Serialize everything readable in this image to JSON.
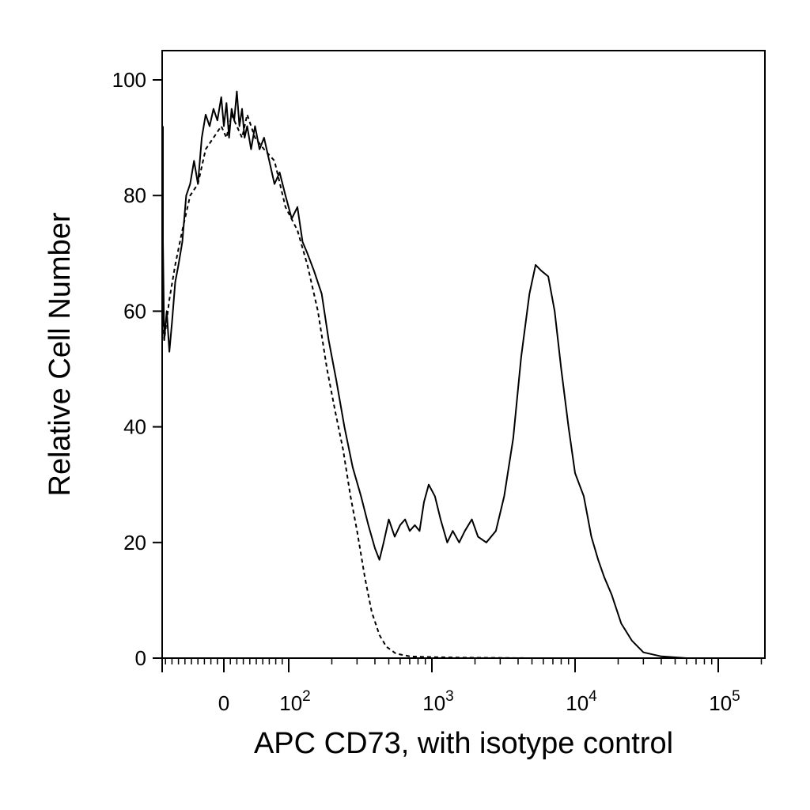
{
  "chart_data": {
    "type": "line",
    "xlabel": "APC CD73, with isotype control",
    "ylabel": "Relative Cell Number",
    "x_scale": "biexponential (linear near 0, log above 10^2)",
    "xlim": [
      -100,
      250000
    ],
    "ylim": [
      0,
      105
    ],
    "grid": false,
    "x_tick_labels": [
      {
        "value": 0,
        "base": "0",
        "exp": ""
      },
      {
        "value": 100,
        "base": "10",
        "exp": "2"
      },
      {
        "value": 1000,
        "base": "10",
        "exp": "3"
      },
      {
        "value": 10000,
        "base": "10",
        "exp": "4"
      },
      {
        "value": 100000,
        "base": "10",
        "exp": "5"
      }
    ],
    "y_ticks": [
      0,
      20,
      40,
      60,
      80,
      100
    ],
    "series": [
      {
        "style": "solid",
        "points": [
          [
            -100,
            92
          ],
          [
            -98,
            58
          ],
          [
            -95,
            72
          ],
          [
            -92,
            55
          ],
          [
            -88,
            60
          ],
          [
            -84,
            53
          ],
          [
            -80,
            58
          ],
          [
            -75,
            65
          ],
          [
            -70,
            68
          ],
          [
            -64,
            72
          ],
          [
            -58,
            80
          ],
          [
            -52,
            82
          ],
          [
            -46,
            86
          ],
          [
            -40,
            82
          ],
          [
            -34,
            90
          ],
          [
            -28,
            94
          ],
          [
            -22,
            92
          ],
          [
            -16,
            95
          ],
          [
            -10,
            93
          ],
          [
            -4,
            97
          ],
          [
            0,
            92
          ],
          [
            4,
            96
          ],
          [
            8,
            90
          ],
          [
            12,
            95
          ],
          [
            16,
            93
          ],
          [
            20,
            98
          ],
          [
            24,
            92
          ],
          [
            28,
            95
          ],
          [
            32,
            90
          ],
          [
            36,
            92
          ],
          [
            42,
            88
          ],
          [
            48,
            92
          ],
          [
            55,
            88
          ],
          [
            62,
            90
          ],
          [
            70,
            86
          ],
          [
            78,
            82
          ],
          [
            86,
            84
          ],
          [
            95,
            80
          ],
          [
            105,
            76
          ],
          [
            115,
            78
          ],
          [
            125,
            72
          ],
          [
            135,
            70
          ],
          [
            150,
            67
          ],
          [
            170,
            63
          ],
          [
            190,
            55
          ],
          [
            215,
            48
          ],
          [
            245,
            40
          ],
          [
            280,
            33
          ],
          [
            320,
            28
          ],
          [
            360,
            23
          ],
          [
            400,
            19
          ],
          [
            430,
            17
          ],
          [
            460,
            20
          ],
          [
            500,
            24
          ],
          [
            550,
            21
          ],
          [
            600,
            23
          ],
          [
            650,
            24
          ],
          [
            700,
            22
          ],
          [
            760,
            23
          ],
          [
            820,
            22
          ],
          [
            880,
            27
          ],
          [
            950,
            30
          ],
          [
            1050,
            28
          ],
          [
            1150,
            24
          ],
          [
            1280,
            20
          ],
          [
            1400,
            22
          ],
          [
            1550,
            20
          ],
          [
            1700,
            22
          ],
          [
            1900,
            24
          ],
          [
            2100,
            21
          ],
          [
            2400,
            20
          ],
          [
            2800,
            22
          ],
          [
            3200,
            28
          ],
          [
            3700,
            38
          ],
          [
            4200,
            52
          ],
          [
            4800,
            63
          ],
          [
            5300,
            68
          ],
          [
            5800,
            67
          ],
          [
            6500,
            66
          ],
          [
            7200,
            60
          ],
          [
            8000,
            50
          ],
          [
            9000,
            40
          ],
          [
            10000,
            32
          ],
          [
            11500,
            28
          ],
          [
            13000,
            21
          ],
          [
            14500,
            17
          ],
          [
            16000,
            14
          ],
          [
            18000,
            11
          ],
          [
            21000,
            6
          ],
          [
            25000,
            3
          ],
          [
            30000,
            1
          ],
          [
            40000,
            0.3
          ],
          [
            60000,
            0
          ],
          [
            250000,
            0
          ]
        ]
      },
      {
        "style": "dashed",
        "points": [
          [
            -100,
            58
          ],
          [
            -92,
            55
          ],
          [
            -84,
            62
          ],
          [
            -75,
            68
          ],
          [
            -64,
            74
          ],
          [
            -52,
            80
          ],
          [
            -40,
            82
          ],
          [
            -28,
            88
          ],
          [
            -16,
            90
          ],
          [
            -4,
            92
          ],
          [
            4,
            90
          ],
          [
            12,
            94
          ],
          [
            20,
            92
          ],
          [
            28,
            90
          ],
          [
            36,
            94
          ],
          [
            48,
            90
          ],
          [
            62,
            88
          ],
          [
            78,
            86
          ],
          [
            95,
            78
          ],
          [
            115,
            74
          ],
          [
            135,
            68
          ],
          [
            160,
            60
          ],
          [
            185,
            50
          ],
          [
            210,
            43
          ],
          [
            240,
            36
          ],
          [
            270,
            28
          ],
          [
            300,
            22
          ],
          [
            340,
            14
          ],
          [
            380,
            8
          ],
          [
            430,
            4
          ],
          [
            480,
            2
          ],
          [
            560,
            0.8
          ],
          [
            700,
            0.3
          ],
          [
            900,
            0.2
          ],
          [
            1500,
            0.1
          ],
          [
            5000,
            0
          ],
          [
            250000,
            0
          ]
        ]
      }
    ]
  }
}
